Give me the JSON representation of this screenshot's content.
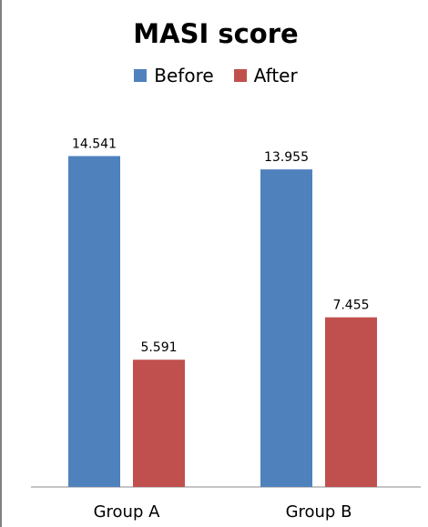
{
  "chart_data": {
    "type": "bar",
    "title": "MASI score",
    "categories": [
      "Group A",
      "Group B"
    ],
    "series": [
      {
        "name": "Before",
        "color": "#4f81bd",
        "values": [
          14.541,
          13.955
        ]
      },
      {
        "name": "After",
        "color": "#c0504d",
        "values": [
          5.591,
          7.455
        ]
      }
    ],
    "data_labels": [
      [
        "14.541",
        "13.955"
      ],
      [
        "5.591",
        "7.455"
      ]
    ],
    "xlabel": "",
    "ylabel": "",
    "ylim": [
      0,
      16
    ],
    "grid": false,
    "legend_position": "top"
  }
}
